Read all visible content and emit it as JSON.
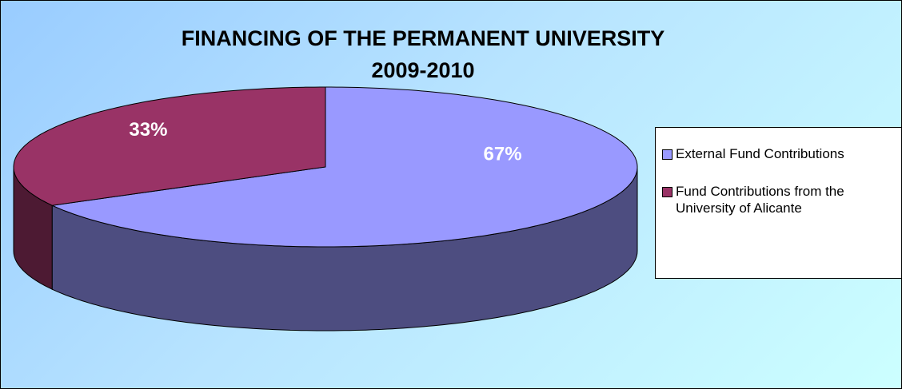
{
  "chart_data": {
    "type": "pie",
    "title": "FINANCING OF THE PERMANENT UNIVERSITY",
    "subtitle": "2009-2010",
    "categories": [
      "External Fund Contributions",
      "Fund Contributions from the University of Alicante"
    ],
    "values": [
      67,
      33
    ],
    "value_labels": [
      "67%",
      "33%"
    ],
    "colors": [
      "#9999ff",
      "#993366"
    ],
    "legend": "right"
  }
}
